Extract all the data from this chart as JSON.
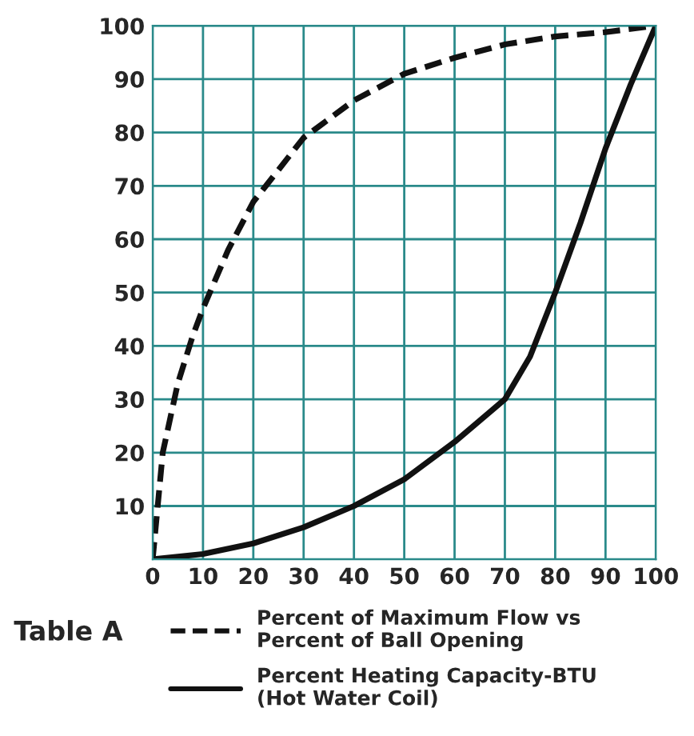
{
  "chart_data": {
    "type": "line",
    "annotations": [
      "Table A"
    ],
    "xlim": [
      0,
      100
    ],
    "xticks": [
      0,
      10,
      20,
      30,
      40,
      50,
      60,
      70,
      80,
      90,
      100
    ],
    "ylim": [
      0,
      100
    ],
    "yticks": [
      {
        "value": 0,
        "label": null
      },
      10,
      20,
      30,
      40,
      50,
      60,
      70,
      80,
      90,
      100
    ],
    "grid": true,
    "legend": "bottom",
    "marker": "none",
    "series": [
      {
        "name": "Percent of Maximum Flow vs\nPercent of Ball Opening",
        "color": "#111111",
        "line_style": "dashed",
        "x": [
          0,
          2,
          5,
          8,
          10,
          15,
          20,
          25,
          30,
          40,
          50,
          60,
          70,
          80,
          90,
          100
        ],
        "values": [
          0,
          20,
          33,
          42,
          47,
          58,
          67,
          73,
          79,
          86,
          91,
          94,
          96.5,
          98,
          98.8,
          100
        ]
      },
      {
        "name": "Percent Heating Capacity-BTU\n(Hot Water Coil)",
        "color": "#111111",
        "line_style": "solid",
        "x": [
          0,
          10,
          20,
          30,
          40,
          50,
          60,
          70,
          75,
          80,
          85,
          90,
          95,
          100
        ],
        "values": [
          0,
          1,
          3,
          6,
          10,
          15,
          22,
          30,
          38,
          50,
          63,
          77,
          89,
          100
        ]
      }
    ]
  }
}
